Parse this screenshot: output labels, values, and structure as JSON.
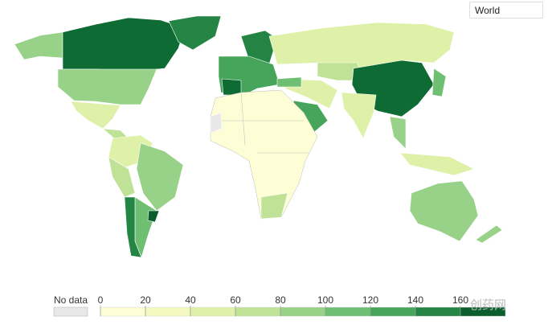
{
  "selector": "World",
  "legend": {
    "no_data_label": "No data",
    "ticks": [
      0,
      20,
      40,
      60,
      80,
      100,
      120,
      140,
      160
    ],
    "colors": [
      "#fefed6",
      "#f3f9c0",
      "#dff0a8",
      "#bfe297",
      "#98d289",
      "#6fbf73",
      "#46a55b",
      "#238443",
      "#0b5f2e"
    ]
  },
  "watermark": "创药网"
}
